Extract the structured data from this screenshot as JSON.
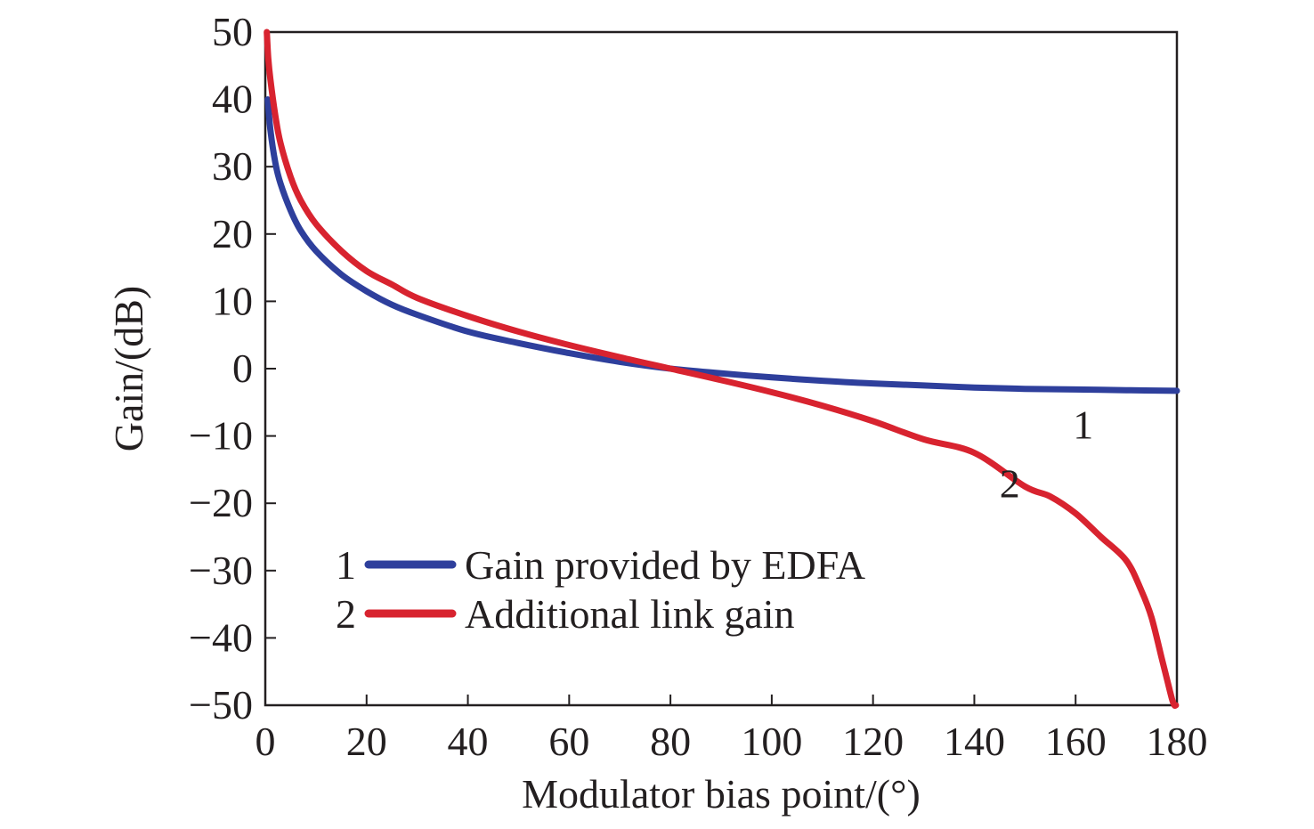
{
  "chart_data": {
    "type": "line",
    "title": "",
    "xlabel": "Modulator bias point/(°)",
    "ylabel": "Gain/(dB)",
    "xlim": [
      0,
      180
    ],
    "ylim": [
      -50,
      50
    ],
    "x_ticks": [
      0,
      20,
      40,
      60,
      80,
      100,
      120,
      140,
      160,
      180
    ],
    "y_ticks": [
      50,
      40,
      30,
      20,
      10,
      0,
      -10,
      -20,
      -30,
      -40,
      -50
    ],
    "x_tick_labels": [
      "0",
      "20",
      "40",
      "60",
      "80",
      "100",
      "120",
      "140",
      "160",
      "180"
    ],
    "y_tick_labels": [
      "50",
      "40",
      "30",
      "20",
      "10",
      "0",
      "−10",
      "−20",
      "−30",
      "−40",
      "−50"
    ],
    "grid": false,
    "legend_position": "bottom-left",
    "series": [
      {
        "name": "Gain provided by EDFA",
        "legend_number": "1",
        "color": "#2e3f9c",
        "x": [
          0.5,
          1,
          2,
          3,
          5,
          7,
          10,
          15,
          20,
          25,
          30,
          40,
          50,
          60,
          70,
          80,
          90,
          100,
          110,
          120,
          130,
          140,
          150,
          160,
          170,
          180
        ],
        "y": [
          40,
          35.5,
          30.5,
          27.5,
          23.5,
          20.5,
          17.5,
          14,
          11.5,
          9.5,
          8,
          5.5,
          3.8,
          2.3,
          1,
          0,
          -0.7,
          -1.3,
          -1.8,
          -2.2,
          -2.5,
          -2.8,
          -3,
          -3.1,
          -3.2,
          -3.3
        ]
      },
      {
        "name": "Additional link gain",
        "legend_number": "2",
        "color": "#d8232f",
        "x": [
          0.3,
          0.6,
          1,
          2,
          3,
          5,
          7,
          10,
          15,
          20,
          25,
          30,
          40,
          50,
          60,
          70,
          80,
          90,
          100,
          110,
          120,
          130,
          140,
          150,
          155,
          160,
          165,
          170,
          173,
          175,
          177,
          178,
          179,
          179.5,
          179.8
        ],
        "y": [
          50,
          46,
          43,
          37.5,
          33.5,
          28.5,
          25,
          21.5,
          17.5,
          14.5,
          12.5,
          10.5,
          7.8,
          5.5,
          3.5,
          1.7,
          0,
          -1.7,
          -3.5,
          -5.5,
          -7.8,
          -10.5,
          -12.5,
          -17.5,
          -19,
          -21.5,
          -25,
          -28.5,
          -33,
          -37,
          -43,
          -46,
          -49,
          -50,
          -50
        ]
      }
    ],
    "annotations": [
      {
        "text": "1",
        "x": 161.5,
        "y": -8.3,
        "series": "Gain provided by EDFA"
      },
      {
        "text": "2",
        "x": 147,
        "y": -17,
        "series": "Additional link gain"
      }
    ]
  }
}
